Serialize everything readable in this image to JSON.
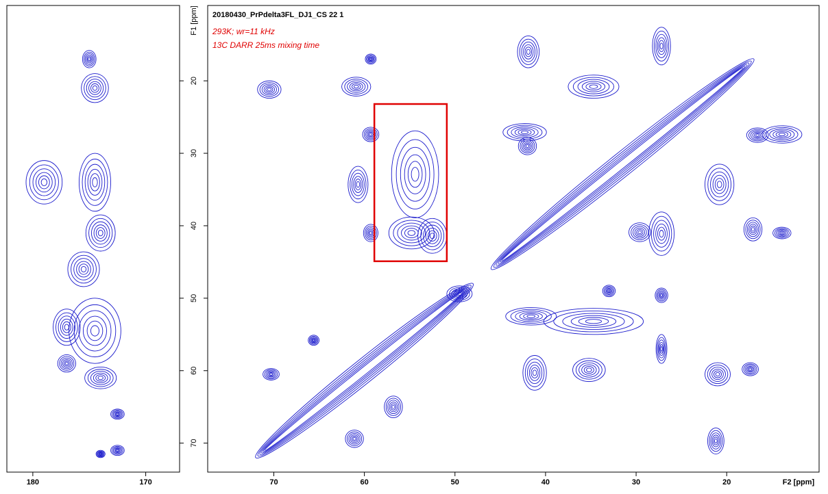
{
  "chart_data": [
    {
      "type": "contour",
      "title": "20180430_PrPdelta3FL_DJ1_CS 22 1",
      "annotations": [
        "293K; wr=11 kHz",
        "13C DARR 25ms mixing time"
      ],
      "xlabel": "F2 [ppm]",
      "ylabel": "F1 [ppm]",
      "color": "#1a1acc",
      "highlight_color": "#e00000",
      "xlim": [
        77.3,
        9.8
      ],
      "xticks": [
        70,
        60,
        50,
        40,
        30,
        20
      ],
      "ylim": [
        9.6,
        74
      ],
      "yticks": [
        20,
        30,
        40,
        50,
        60,
        70
      ],
      "highlight": {
        "x": [
          58.9,
          50.9
        ],
        "y": [
          23.2,
          44.9
        ]
      },
      "diagonal": [
        [
          72,
          48
        ],
        [
          46,
          17
        ]
      ],
      "peaks": [
        {
          "x": 70.5,
          "y": 21.2,
          "rx": 1.3,
          "ry": 1.2
        },
        {
          "x": 60.9,
          "y": 20.8,
          "rx": 1.6,
          "ry": 1.3
        },
        {
          "x": 59.3,
          "y": 17,
          "rx": 0.6,
          "ry": 0.7
        },
        {
          "x": 59.3,
          "y": 27.4,
          "rx": 0.9,
          "ry": 1
        },
        {
          "x": 60.7,
          "y": 34.3,
          "rx": 1.1,
          "ry": 2.5
        },
        {
          "x": 59.3,
          "y": 41,
          "rx": 0.8,
          "ry": 1.2
        },
        {
          "x": 54.4,
          "y": 32.9,
          "rx": 2.6,
          "ry": 6
        },
        {
          "x": 54.8,
          "y": 41,
          "rx": 2.5,
          "ry": 2.2
        },
        {
          "x": 52.5,
          "y": 41.4,
          "rx": 1.6,
          "ry": 2.4
        },
        {
          "x": 70.3,
          "y": 60.5,
          "rx": 0.9,
          "ry": 0.8
        },
        {
          "x": 61.1,
          "y": 69.4,
          "rx": 1,
          "ry": 1.2
        },
        {
          "x": 56.8,
          "y": 65,
          "rx": 1,
          "ry": 1.5
        },
        {
          "x": 65.6,
          "y": 55.8,
          "rx": 0.6,
          "ry": 0.7
        },
        {
          "x": 41.9,
          "y": 16,
          "rx": 1.2,
          "ry": 2.2
        },
        {
          "x": 27.2,
          "y": 15.2,
          "rx": 1,
          "ry": 2.6
        },
        {
          "x": 34.7,
          "y": 20.8,
          "rx": 2.8,
          "ry": 1.6
        },
        {
          "x": 42.3,
          "y": 27.1,
          "rx": 2.4,
          "ry": 1.2
        },
        {
          "x": 42,
          "y": 29,
          "rx": 1,
          "ry": 1.2
        },
        {
          "x": 20.8,
          "y": 34.3,
          "rx": 1.6,
          "ry": 2.8
        },
        {
          "x": 13.9,
          "y": 27.4,
          "rx": 2.2,
          "ry": 1.2
        },
        {
          "x": 16.6,
          "y": 27.5,
          "rx": 1.2,
          "ry": 1
        },
        {
          "x": 27.2,
          "y": 41.1,
          "rx": 1.4,
          "ry": 3
        },
        {
          "x": 29.6,
          "y": 40.9,
          "rx": 1.2,
          "ry": 1.3
        },
        {
          "x": 17.1,
          "y": 40.5,
          "rx": 1,
          "ry": 1.6
        },
        {
          "x": 13.9,
          "y": 41,
          "rx": 1,
          "ry": 0.8
        },
        {
          "x": 34.7,
          "y": 53.2,
          "rx": 5.5,
          "ry": 1.8
        },
        {
          "x": 41.6,
          "y": 52.5,
          "rx": 2.8,
          "ry": 1.2
        },
        {
          "x": 41.2,
          "y": 60.3,
          "rx": 1.3,
          "ry": 2.4
        },
        {
          "x": 35.2,
          "y": 59.9,
          "rx": 1.8,
          "ry": 1.6
        },
        {
          "x": 27.2,
          "y": 49.6,
          "rx": 0.7,
          "ry": 1
        },
        {
          "x": 33,
          "y": 49,
          "rx": 0.7,
          "ry": 0.8
        },
        {
          "x": 21,
          "y": 60.5,
          "rx": 1.4,
          "ry": 1.6
        },
        {
          "x": 17.4,
          "y": 59.8,
          "rx": 0.9,
          "ry": 0.9
        },
        {
          "x": 21.2,
          "y": 69.7,
          "rx": 0.9,
          "ry": 1.8
        },
        {
          "x": 27.2,
          "y": 57,
          "rx": 0.6,
          "ry": 2
        },
        {
          "x": 49.5,
          "y": 49.4,
          "rx": 1.4,
          "ry": 1.1
        }
      ]
    },
    {
      "type": "contour",
      "color": "#1a1acc",
      "xlim": [
        182.3,
        167
      ],
      "xticks": [
        180,
        170
      ],
      "ylim": [
        9.6,
        74
      ],
      "peaks": [
        {
          "x": 174.5,
          "y": 34,
          "rx": 1.4,
          "ry": 4
        },
        {
          "x": 174.5,
          "y": 54.5,
          "rx": 2.3,
          "ry": 4.5
        },
        {
          "x": 179,
          "y": 34,
          "rx": 1.6,
          "ry": 3
        },
        {
          "x": 174.5,
          "y": 21,
          "rx": 1.2,
          "ry": 2
        },
        {
          "x": 174,
          "y": 41,
          "rx": 1.3,
          "ry": 2.5
        },
        {
          "x": 175,
          "y": 17,
          "rx": 0.6,
          "ry": 1.2
        },
        {
          "x": 174,
          "y": 61,
          "rx": 1.4,
          "ry": 1.5
        },
        {
          "x": 172.5,
          "y": 66,
          "rx": 0.6,
          "ry": 0.7
        },
        {
          "x": 174,
          "y": 71.5,
          "rx": 0.4,
          "ry": 0.5
        },
        {
          "x": 172.5,
          "y": 71,
          "rx": 0.6,
          "ry": 0.7
        },
        {
          "x": 177,
          "y": 54,
          "rx": 1.2,
          "ry": 2.5
        },
        {
          "x": 177,
          "y": 59,
          "rx": 0.8,
          "ry": 1.2
        },
        {
          "x": 175.5,
          "y": 46,
          "rx": 1.4,
          "ry": 2.4
        }
      ]
    }
  ]
}
